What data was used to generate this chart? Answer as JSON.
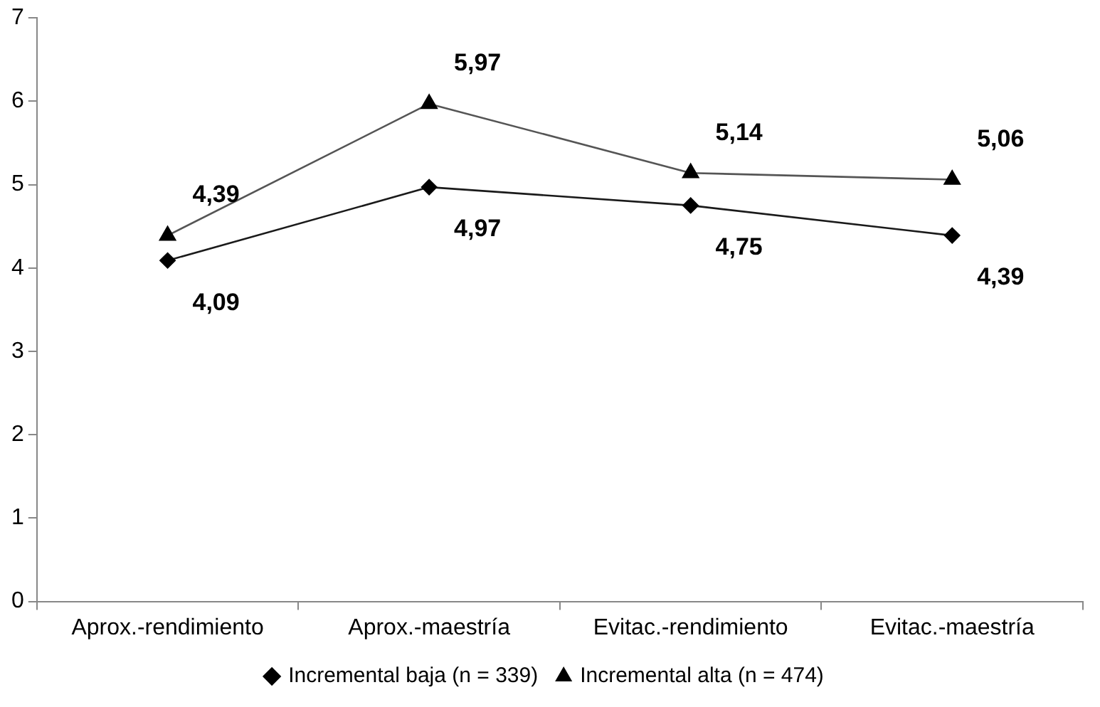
{
  "chart_data": {
    "type": "line",
    "categories": [
      "Aprox.-rendimiento",
      "Aprox.-maestría",
      "Evitac.-rendimiento",
      "Evitac.-maestría"
    ],
    "series": [
      {
        "name": "Incremental baja (n = 339)",
        "color": "#1a1a1a",
        "marker": "diamond",
        "values": [
          4.09,
          4.97,
          4.75,
          4.39
        ],
        "value_labels": [
          "4,09",
          "4,97",
          "4,75",
          "4,39"
        ]
      },
      {
        "name": "Incremental alta (n = 474)",
        "color": "#555555",
        "marker": "triangle",
        "values": [
          4.39,
          5.97,
          5.14,
          5.06
        ],
        "value_labels": [
          "4,39",
          "5,97",
          "5,14",
          "5,06"
        ]
      }
    ],
    "ylim": [
      0,
      7
    ],
    "yticks": [
      0,
      1,
      2,
      3,
      4,
      5,
      6,
      7
    ],
    "grid": false,
    "legend": "bottom",
    "line_style": "solid"
  }
}
